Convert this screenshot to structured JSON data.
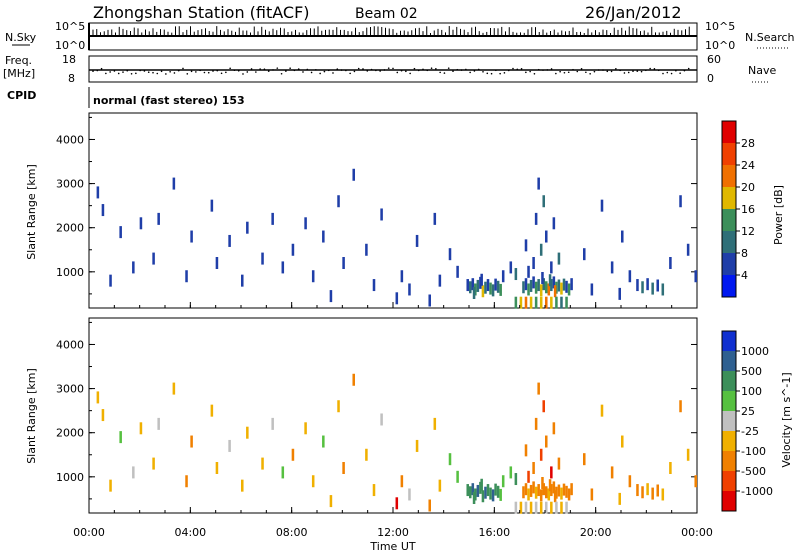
{
  "header": {
    "title": "Zhongshan Station (fitACF)",
    "beam": "Beam 02",
    "date": "26/Jan/2012"
  },
  "strips": {
    "nsky_label": "N.Sky",
    "nsearch_label": "N.Search",
    "nsky_ticks": [
      "10^5",
      "10^0"
    ],
    "nsearch_ticks": [
      "10^5",
      "10^0"
    ],
    "freq_label_line1": "Freq.",
    "freq_label_line2": "[MHz]",
    "freq_ticks": [
      "18",
      "8"
    ],
    "nave_label": "Nave",
    "nave_ticks": [
      "60",
      "0"
    ],
    "cpid_label": "CPID",
    "cpid_text": "normal (fast stereo) 153"
  },
  "chart_data": [
    {
      "type": "heatmap",
      "name": "power",
      "ylabel": "Slant Range [km]",
      "xlabel": "",
      "xlim": [
        0,
        24
      ],
      "ylim": [
        180,
        4600
      ],
      "yticks": [
        1000,
        2000,
        3000,
        4000
      ],
      "colorbar_label": "Power [dB]",
      "colorbar_ticks": [
        "4",
        "8",
        "12",
        "16",
        "20",
        "24",
        "28"
      ],
      "colors": [
        "#0018f0",
        "#1f3ea8",
        "#2f6f78",
        "#3c8f5a",
        "#e0b800",
        "#f07000",
        "#f04000",
        "#e00000"
      ],
      "cells": [
        [
          14.9,
          700,
          1
        ],
        [
          15.0,
          650,
          2
        ],
        [
          15.1,
          720,
          1
        ],
        [
          15.2,
          600,
          3
        ],
        [
          15.3,
          680,
          2
        ],
        [
          15.4,
          750,
          1
        ],
        [
          15.5,
          560,
          4
        ],
        [
          15.6,
          640,
          2
        ],
        [
          15.7,
          700,
          1
        ],
        [
          15.8,
          620,
          3
        ],
        [
          15.9,
          580,
          2
        ],
        [
          16.0,
          710,
          1
        ],
        [
          16.1,
          660,
          2
        ],
        [
          16.2,
          590,
          3
        ],
        [
          15.45,
          820,
          1
        ],
        [
          15.15,
          520,
          2
        ],
        [
          17.1,
          650,
          2
        ],
        [
          17.2,
          720,
          1
        ],
        [
          17.3,
          600,
          3
        ],
        [
          17.4,
          680,
          2
        ],
        [
          17.5,
          760,
          1
        ],
        [
          17.6,
          640,
          3
        ],
        [
          17.7,
          700,
          2
        ],
        [
          17.8,
          580,
          4
        ],
        [
          17.9,
          720,
          2
        ],
        [
          18.0,
          650,
          3
        ],
        [
          18.1,
          600,
          5
        ],
        [
          18.2,
          700,
          2
        ],
        [
          18.3,
          760,
          1
        ],
        [
          18.4,
          640,
          3
        ],
        [
          18.5,
          690,
          2
        ],
        [
          18.6,
          620,
          4
        ],
        [
          18.7,
          710,
          2
        ],
        [
          18.8,
          660,
          1
        ],
        [
          18.9,
          600,
          3
        ],
        [
          19.0,
          720,
          1
        ],
        [
          18.35,
          560,
          5
        ],
        [
          18.15,
          810,
          2
        ],
        [
          17.85,
          860,
          1
        ],
        [
          16.8,
          300,
          3
        ],
        [
          17.0,
          300,
          4
        ],
        [
          17.2,
          300,
          5
        ],
        [
          17.4,
          300,
          4
        ],
        [
          17.6,
          300,
          3
        ],
        [
          17.8,
          300,
          4
        ],
        [
          18.0,
          300,
          5
        ],
        [
          18.2,
          300,
          4
        ],
        [
          18.4,
          300,
          3
        ],
        [
          18.6,
          300,
          2
        ],
        [
          18.8,
          300,
          3
        ],
        [
          21.6,
          700,
          1
        ],
        [
          21.8,
          650,
          2
        ],
        [
          22.0,
          720,
          1
        ],
        [
          22.2,
          620,
          2
        ],
        [
          22.4,
          690,
          1
        ],
        [
          22.6,
          600,
          2
        ],
        [
          17.5,
          1200,
          1
        ],
        [
          17.8,
          1500,
          2
        ],
        [
          18.0,
          1800,
          1
        ],
        [
          18.2,
          1100,
          1
        ],
        [
          17.6,
          2200,
          1
        ],
        [
          17.9,
          2600,
          2
        ],
        [
          17.7,
          3000,
          1
        ],
        [
          18.3,
          2100,
          1
        ],
        [
          18.5,
          1300,
          2
        ],
        [
          17.3,
          1000,
          1
        ],
        [
          17.2,
          1600,
          1
        ],
        [
          16.6,
          1100,
          1
        ],
        [
          16.8,
          950,
          2
        ],
        [
          16.3,
          900,
          1
        ],
        [
          0.3,
          2800,
          1
        ],
        [
          0.5,
          2400,
          1
        ],
        [
          1.2,
          1900,
          1
        ],
        [
          2.0,
          2100,
          1
        ],
        [
          2.7,
          2200,
          1
        ],
        [
          3.3,
          3000,
          1
        ],
        [
          4.0,
          1800,
          1
        ],
        [
          4.8,
          2500,
          1
        ],
        [
          5.5,
          1700,
          1
        ],
        [
          6.2,
          2000,
          1
        ],
        [
          6.8,
          1300,
          1
        ],
        [
          7.2,
          2200,
          1
        ],
        [
          8.0,
          1500,
          1
        ],
        [
          8.5,
          2100,
          1
        ],
        [
          9.2,
          1800,
          1
        ],
        [
          9.8,
          2600,
          1
        ],
        [
          10.4,
          3200,
          1
        ],
        [
          10.9,
          1500,
          1
        ],
        [
          11.5,
          2300,
          1
        ],
        [
          12.3,
          900,
          1
        ],
        [
          12.9,
          1700,
          1
        ],
        [
          13.6,
          2200,
          1
        ],
        [
          14.2,
          1400,
          1
        ],
        [
          0.8,
          800,
          1
        ],
        [
          1.7,
          1100,
          1
        ],
        [
          2.5,
          1300,
          1
        ],
        [
          3.8,
          900,
          1
        ],
        [
          5.0,
          1200,
          1
        ],
        [
          6.0,
          800,
          1
        ],
        [
          7.6,
          1100,
          1
        ],
        [
          8.8,
          900,
          1
        ],
        [
          10.0,
          1200,
          1
        ],
        [
          11.2,
          700,
          1
        ],
        [
          12.6,
          600,
          1
        ],
        [
          13.8,
          800,
          1
        ],
        [
          14.5,
          1000,
          1
        ],
        [
          19.5,
          1400,
          1
        ],
        [
          20.2,
          2500,
          1
        ],
        [
          20.6,
          1100,
          1
        ],
        [
          21.0,
          1800,
          1
        ],
        [
          21.3,
          900,
          1
        ],
        [
          22.9,
          1200,
          1
        ],
        [
          23.3,
          2600,
          1
        ],
        [
          23.6,
          1500,
          1
        ],
        [
          23.9,
          900,
          1
        ],
        [
          19.8,
          600,
          1
        ],
        [
          20.9,
          500,
          1
        ],
        [
          12.1,
          400,
          1
        ],
        [
          13.4,
          350,
          1
        ],
        [
          9.5,
          450,
          1
        ]
      ]
    },
    {
      "type": "heatmap",
      "name": "velocity",
      "ylabel": "Slant Range [km]",
      "xlabel": "Time UT",
      "xlim": [
        0,
        24
      ],
      "ylim": [
        180,
        4600
      ],
      "yticks": [
        1000,
        2000,
        3000,
        4000
      ],
      "xticks": [
        "00:00",
        "04:00",
        "08:00",
        "12:00",
        "16:00",
        "20:00",
        "00:00"
      ],
      "colorbar_label": "Velocity [m s^-1]",
      "colorbar_ticks": [
        "1000",
        "500",
        "100",
        "25",
        "-25",
        "-100",
        "-500",
        "-1000"
      ],
      "colors": [
        "#1030d0",
        "#2f6090",
        "#3c8f5a",
        "#56c040",
        "#c0c0c0",
        "#f0b000",
        "#f08000",
        "#f04000",
        "#e00000"
      ],
      "cells": [
        [
          14.9,
          700,
          2
        ],
        [
          15.0,
          650,
          2
        ],
        [
          15.1,
          720,
          1
        ],
        [
          15.2,
          600,
          2
        ],
        [
          15.3,
          680,
          1
        ],
        [
          15.4,
          750,
          2
        ],
        [
          15.5,
          560,
          2
        ],
        [
          15.6,
          640,
          1
        ],
        [
          15.7,
          700,
          2
        ],
        [
          15.8,
          620,
          2
        ],
        [
          15.9,
          580,
          1
        ],
        [
          16.0,
          710,
          2
        ],
        [
          16.1,
          660,
          2
        ],
        [
          16.2,
          590,
          3
        ],
        [
          15.45,
          820,
          2
        ],
        [
          15.15,
          520,
          2
        ],
        [
          17.1,
          650,
          6
        ],
        [
          17.2,
          720,
          6
        ],
        [
          17.3,
          600,
          5
        ],
        [
          17.4,
          680,
          6
        ],
        [
          17.5,
          760,
          6
        ],
        [
          17.6,
          640,
          5
        ],
        [
          17.7,
          700,
          6
        ],
        [
          17.8,
          580,
          6
        ],
        [
          17.9,
          720,
          6
        ],
        [
          18.0,
          650,
          6
        ],
        [
          18.1,
          600,
          5
        ],
        [
          18.2,
          700,
          6
        ],
        [
          18.3,
          760,
          6
        ],
        [
          18.4,
          640,
          6
        ],
        [
          18.5,
          690,
          6
        ],
        [
          18.6,
          620,
          5
        ],
        [
          18.7,
          710,
          6
        ],
        [
          18.8,
          660,
          6
        ],
        [
          18.9,
          600,
          6
        ],
        [
          19.0,
          720,
          6
        ],
        [
          18.35,
          560,
          6
        ],
        [
          18.15,
          810,
          6
        ],
        [
          17.85,
          860,
          6
        ],
        [
          16.8,
          300,
          4
        ],
        [
          17.0,
          300,
          5
        ],
        [
          17.2,
          300,
          4
        ],
        [
          17.4,
          300,
          5
        ],
        [
          17.6,
          300,
          4
        ],
        [
          17.8,
          300,
          5
        ],
        [
          18.0,
          300,
          4
        ],
        [
          18.2,
          300,
          5
        ],
        [
          18.4,
          300,
          4
        ],
        [
          18.6,
          300,
          5
        ],
        [
          18.8,
          300,
          4
        ],
        [
          21.6,
          700,
          6
        ],
        [
          21.8,
          650,
          6
        ],
        [
          22.0,
          720,
          5
        ],
        [
          22.2,
          620,
          6
        ],
        [
          22.4,
          690,
          6
        ],
        [
          22.6,
          600,
          5
        ],
        [
          17.5,
          1200,
          6
        ],
        [
          17.8,
          1500,
          7
        ],
        [
          18.0,
          1800,
          6
        ],
        [
          18.2,
          1100,
          8
        ],
        [
          17.6,
          2200,
          6
        ],
        [
          17.9,
          2600,
          7
        ],
        [
          17.7,
          3000,
          6
        ],
        [
          18.3,
          2100,
          6
        ],
        [
          18.5,
          1300,
          6
        ],
        [
          17.3,
          1000,
          7
        ],
        [
          17.2,
          1600,
          6
        ],
        [
          16.6,
          1100,
          3
        ],
        [
          16.8,
          950,
          2
        ],
        [
          16.3,
          900,
          3
        ],
        [
          0.3,
          2800,
          5
        ],
        [
          0.5,
          2400,
          5
        ],
        [
          1.2,
          1900,
          3
        ],
        [
          2.0,
          2100,
          5
        ],
        [
          2.7,
          2200,
          4
        ],
        [
          3.3,
          3000,
          5
        ],
        [
          4.0,
          1800,
          6
        ],
        [
          4.8,
          2500,
          5
        ],
        [
          5.5,
          1700,
          4
        ],
        [
          6.2,
          2000,
          5
        ],
        [
          6.8,
          1300,
          5
        ],
        [
          7.2,
          2200,
          4
        ],
        [
          8.0,
          1500,
          6
        ],
        [
          8.5,
          2100,
          5
        ],
        [
          9.2,
          1800,
          3
        ],
        [
          9.8,
          2600,
          5
        ],
        [
          10.4,
          3200,
          6
        ],
        [
          10.9,
          1500,
          5
        ],
        [
          11.5,
          2300,
          4
        ],
        [
          12.3,
          900,
          6
        ],
        [
          12.9,
          1700,
          5
        ],
        [
          13.6,
          2200,
          5
        ],
        [
          14.2,
          1400,
          3
        ],
        [
          0.8,
          800,
          5
        ],
        [
          1.7,
          1100,
          4
        ],
        [
          2.5,
          1300,
          5
        ],
        [
          3.8,
          900,
          6
        ],
        [
          5.0,
          1200,
          5
        ],
        [
          6.0,
          800,
          5
        ],
        [
          7.6,
          1100,
          3
        ],
        [
          8.8,
          900,
          5
        ],
        [
          10.0,
          1200,
          6
        ],
        [
          11.2,
          700,
          5
        ],
        [
          12.6,
          600,
          4
        ],
        [
          13.8,
          800,
          5
        ],
        [
          14.5,
          1000,
          3
        ],
        [
          19.5,
          1400,
          6
        ],
        [
          20.2,
          2500,
          5
        ],
        [
          20.6,
          1100,
          6
        ],
        [
          21.0,
          1800,
          5
        ],
        [
          21.3,
          900,
          6
        ],
        [
          22.9,
          1200,
          5
        ],
        [
          23.3,
          2600,
          6
        ],
        [
          23.6,
          1500,
          5
        ],
        [
          23.9,
          900,
          6
        ],
        [
          19.8,
          600,
          6
        ],
        [
          20.9,
          500,
          5
        ],
        [
          12.1,
          400,
          8
        ],
        [
          13.4,
          350,
          6
        ],
        [
          9.5,
          450,
          5
        ]
      ]
    }
  ]
}
